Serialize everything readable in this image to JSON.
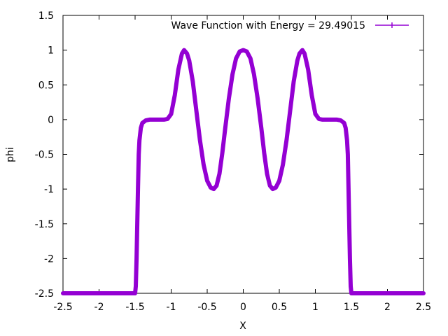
{
  "chart_data": {
    "type": "line",
    "title": "",
    "xlabel": "X",
    "ylabel": "phi",
    "xlim": [
      -2.5,
      2.5
    ],
    "ylim": [
      -2.5,
      1.5
    ],
    "x_ticks": [
      -2.5,
      -2,
      -1.5,
      -1,
      -0.5,
      0,
      0.5,
      1,
      1.5,
      2,
      2.5
    ],
    "x_tick_labels": [
      "-2.5",
      "-2",
      "-1.5",
      "-1",
      "-0.5",
      "0",
      "0.5",
      "1",
      "1.5",
      "2",
      "2.5"
    ],
    "y_ticks": [
      -2.5,
      -2,
      -1.5,
      -1,
      -0.5,
      0,
      0.5,
      1,
      1.5
    ],
    "y_tick_labels": [
      "-2.5",
      "-2",
      "-1.5",
      "-1",
      "-0.5",
      "0",
      "0.5",
      "1",
      "1.5"
    ],
    "grid": false,
    "legend": {
      "position": "top-right"
    },
    "series": [
      {
        "name": "Wave Function with Energy = 29.49015",
        "color": "#9400d3",
        "x": [
          -2.5,
          -2.0,
          -1.5,
          -1.49,
          -1.48,
          -1.47,
          -1.46,
          -1.45,
          -1.44,
          -1.42,
          -1.4,
          -1.35,
          -1.3,
          -1.2,
          -1.1,
          -1.05,
          -1.0,
          -0.95,
          -0.9,
          -0.85,
          -0.82,
          -0.78,
          -0.75,
          -0.7,
          -0.65,
          -0.6,
          -0.55,
          -0.5,
          -0.45,
          -0.41,
          -0.37,
          -0.33,
          -0.29,
          -0.25,
          -0.2,
          -0.15,
          -0.1,
          -0.05,
          0.0,
          0.05,
          0.1,
          0.15,
          0.2,
          0.25,
          0.29,
          0.33,
          0.37,
          0.41,
          0.45,
          0.5,
          0.55,
          0.6,
          0.65,
          0.7,
          0.75,
          0.78,
          0.82,
          0.85,
          0.9,
          0.95,
          1.0,
          1.05,
          1.1,
          1.2,
          1.3,
          1.35,
          1.4,
          1.42,
          1.44,
          1.45,
          1.46,
          1.47,
          1.48,
          1.49,
          1.5,
          2.0,
          2.5
        ],
        "y": [
          -2.5,
          -2.5,
          -2.5,
          -2.4,
          -2.0,
          -1.5,
          -1.0,
          -0.5,
          -0.3,
          -0.12,
          -0.05,
          -0.01,
          0.0,
          0.0,
          0.0,
          0.01,
          0.08,
          0.35,
          0.72,
          0.95,
          1.0,
          0.95,
          0.85,
          0.55,
          0.12,
          -0.3,
          -0.65,
          -0.88,
          -0.98,
          -1.0,
          -0.95,
          -0.78,
          -0.48,
          -0.12,
          0.3,
          0.65,
          0.88,
          0.98,
          1.0,
          0.98,
          0.88,
          0.65,
          0.3,
          -0.12,
          -0.48,
          -0.78,
          -0.95,
          -1.0,
          -0.98,
          -0.88,
          -0.65,
          -0.3,
          0.12,
          0.55,
          0.85,
          0.95,
          1.0,
          0.95,
          0.72,
          0.35,
          0.08,
          0.01,
          0.0,
          0.0,
          0.0,
          -0.01,
          -0.05,
          -0.12,
          -0.3,
          -0.5,
          -1.0,
          -1.5,
          -2.0,
          -2.4,
          -2.5,
          -2.5,
          -2.5
        ]
      }
    ]
  }
}
